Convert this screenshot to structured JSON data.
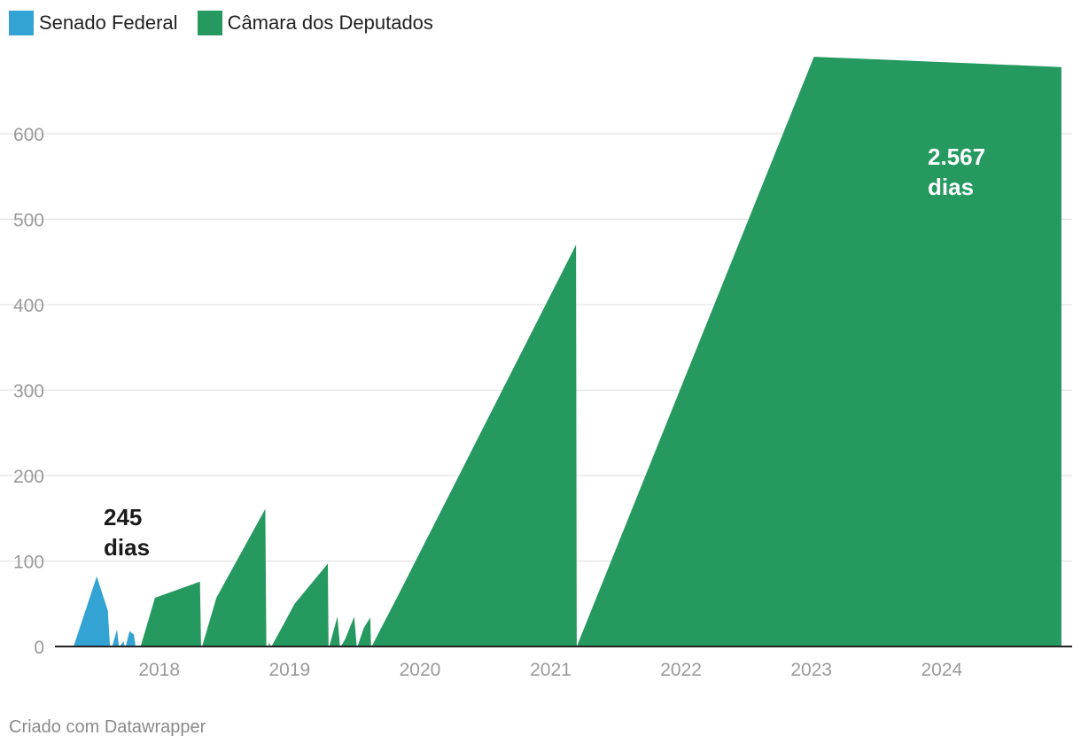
{
  "legend": [
    {
      "label": "Senado Federal",
      "color": "#33a3d4"
    },
    {
      "label": "Câmara dos Deputados",
      "color": "#25995f"
    }
  ],
  "footer": {
    "credit": "Criado com Datawrapper"
  },
  "chart_data": {
    "type": "area",
    "title": "",
    "xlabel": "",
    "ylabel": "",
    "ylim": [
      0,
      700
    ],
    "yticks": [
      0,
      100,
      200,
      300,
      400,
      500,
      600
    ],
    "xlim": [
      "2017-03-15",
      "2024-12-31"
    ],
    "xticks": [
      {
        "label": "2018",
        "date": "2018-01-01"
      },
      {
        "label": "2019",
        "date": "2019-01-01"
      },
      {
        "label": "2020",
        "date": "2020-01-01"
      },
      {
        "label": "2021",
        "date": "2021-01-01"
      },
      {
        "label": "2022",
        "date": "2022-01-01"
      },
      {
        "label": "2023",
        "date": "2023-01-01"
      },
      {
        "label": "2024",
        "date": "2024-01-01"
      }
    ],
    "gridlines": true,
    "legend_position": "top-left",
    "series": [
      {
        "name": "Senado Federal",
        "color": "#33a3d4",
        "segments": [
          [
            [
              "2017-05-06",
              0
            ],
            [
              "2017-07-10",
              82
            ],
            [
              "2017-08-10",
              42
            ],
            [
              "2017-08-16",
              0
            ]
          ],
          [
            [
              "2017-08-22",
              0
            ],
            [
              "2017-09-05",
              20
            ],
            [
              "2017-09-10",
              0
            ]
          ],
          [
            [
              "2017-09-12",
              0
            ],
            [
              "2017-09-23",
              6
            ],
            [
              "2017-09-27",
              0
            ]
          ],
          [
            [
              "2017-09-29",
              0
            ],
            [
              "2017-10-10",
              18
            ],
            [
              "2017-10-22",
              14
            ],
            [
              "2017-10-27",
              0
            ]
          ]
        ],
        "annotation": {
          "lines": [
            "245",
            "dias"
          ],
          "color": "#1a1a1a"
        }
      },
      {
        "name": "Câmara dos Deputados",
        "color": "#25995f",
        "segments": [
          [
            [
              "2017-11-10",
              0
            ],
            [
              "2017-12-20",
              57
            ],
            [
              "2018-04-25",
              76
            ],
            [
              "2018-04-28",
              0
            ]
          ],
          [
            [
              "2018-05-01",
              0
            ],
            [
              "2018-06-10",
              57
            ],
            [
              "2018-10-25",
              161
            ],
            [
              "2018-10-28",
              0
            ]
          ],
          [
            [
              "2018-11-02",
              0
            ],
            [
              "2018-11-05",
              5
            ],
            [
              "2018-11-08",
              0
            ]
          ],
          [
            [
              "2018-11-11",
              0
            ],
            [
              "2018-12-10",
              22
            ],
            [
              "2019-01-15",
              50
            ],
            [
              "2019-04-18",
              97
            ],
            [
              "2019-04-20",
              0
            ]
          ],
          [
            [
              "2019-04-22",
              0
            ],
            [
              "2019-05-15",
              35
            ],
            [
              "2019-05-22",
              0
            ]
          ],
          [
            [
              "2019-05-24",
              0
            ],
            [
              "2019-06-05",
              8
            ],
            [
              "2019-07-01",
              35
            ],
            [
              "2019-07-08",
              0
            ]
          ],
          [
            [
              "2019-07-10",
              0
            ],
            [
              "2019-07-28",
              22
            ],
            [
              "2019-08-15",
              34
            ],
            [
              "2019-08-17",
              0
            ]
          ],
          [
            [
              "2019-08-19",
              0
            ],
            [
              "2019-09-15",
              22
            ],
            [
              "2019-11-01",
              60
            ],
            [
              "2021-03-13",
              470
            ],
            [
              "2021-03-15",
              0
            ]
          ],
          [
            [
              "2021-03-15",
              0
            ],
            [
              "2023-01-08",
              690
            ],
            [
              "2024-12-01",
              678
            ],
            [
              "2024-12-01",
              0
            ]
          ]
        ],
        "annotation": {
          "lines": [
            "2.567",
            "dias"
          ],
          "color": "#ffffff"
        }
      }
    ]
  }
}
